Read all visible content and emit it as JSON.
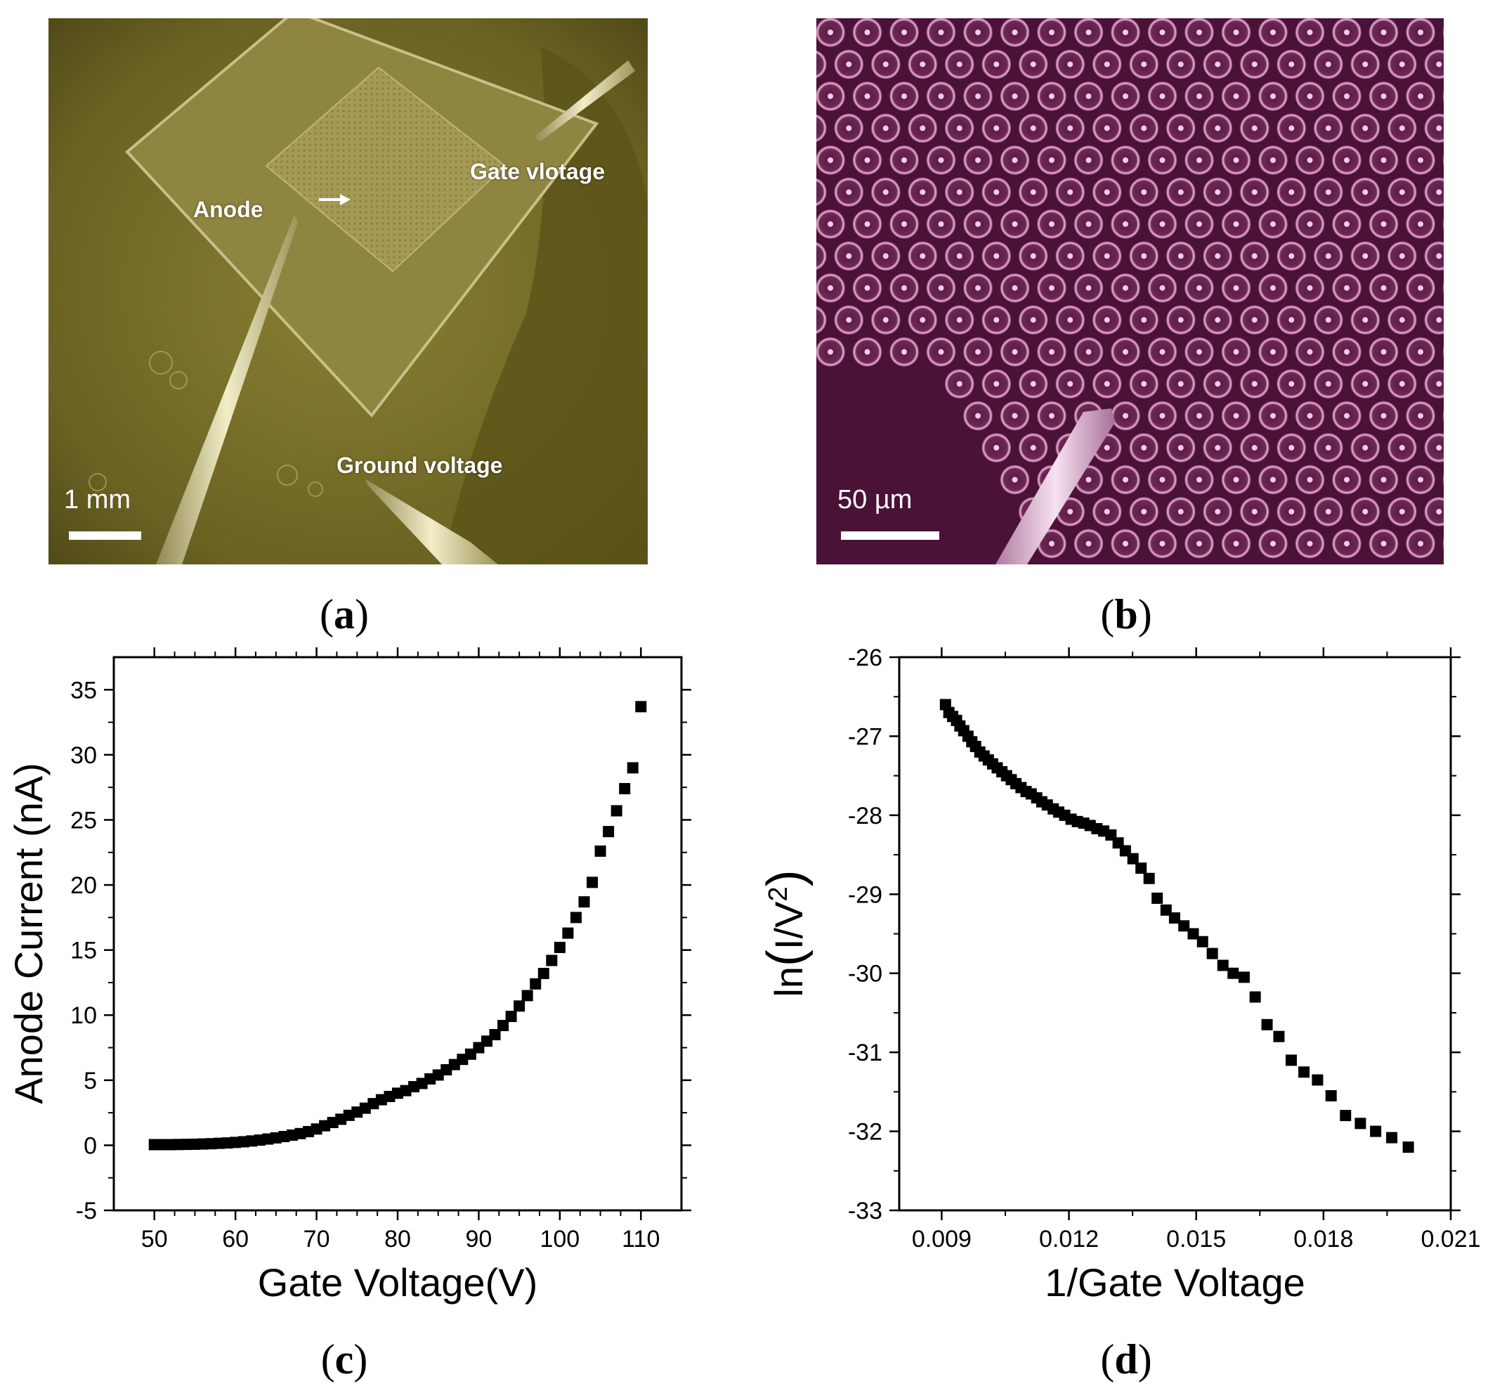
{
  "panels": {
    "a": {
      "caption": "a",
      "labels": {
        "anode": "Anode",
        "gate": "Gate vlotage",
        "ground": "Ground voltage"
      },
      "scale_bar": "1 mm",
      "tint": "#6e6624"
    },
    "b": {
      "caption": "b",
      "scale_bar": "50 µm",
      "tint": "#4a1236"
    },
    "c": {
      "caption": "c"
    },
    "d": {
      "caption": "d"
    }
  },
  "chart_data": [
    {
      "id": "c",
      "type": "scatter",
      "xlabel": "Gate Voltage(V)",
      "ylabel": "Anode Current (nA)",
      "xlim": [
        45,
        115
      ],
      "ylim": [
        -5,
        37.5
      ],
      "xticks": [
        50,
        60,
        70,
        80,
        90,
        100,
        110
      ],
      "yticks": [
        -5,
        0,
        5,
        10,
        15,
        20,
        25,
        30,
        35
      ],
      "xtick_labels": [
        "50",
        "60",
        "70",
        "80",
        "90",
        "100",
        "110"
      ],
      "ytick_labels": [
        "-5",
        "0",
        "5",
        "10",
        "15",
        "20",
        "25",
        "30",
        "35"
      ],
      "x": [
        50,
        51,
        52,
        53,
        54,
        55,
        56,
        57,
        58,
        59,
        60,
        61,
        62,
        63,
        64,
        65,
        66,
        67,
        68,
        69,
        70,
        71,
        72,
        73,
        74,
        75,
        76,
        77,
        78,
        79,
        80,
        81,
        82,
        83,
        84,
        85,
        86,
        87,
        88,
        89,
        90,
        91,
        92,
        93,
        94,
        95,
        96,
        97,
        98,
        99,
        100,
        101,
        102,
        103,
        104,
        105,
        106,
        107,
        108,
        109,
        110
      ],
      "y": [
        0.05,
        0.05,
        0.05,
        0.06,
        0.07,
        0.08,
        0.1,
        0.12,
        0.15,
        0.18,
        0.22,
        0.27,
        0.33,
        0.4,
        0.48,
        0.57,
        0.67,
        0.78,
        0.9,
        1.05,
        1.25,
        1.5,
        1.75,
        2.0,
        2.3,
        2.55,
        2.85,
        3.2,
        3.5,
        3.75,
        4.0,
        4.2,
        4.5,
        4.75,
        5.1,
        5.4,
        5.8,
        6.2,
        6.6,
        7.0,
        7.5,
        8.0,
        8.5,
        9.2,
        9.9,
        10.7,
        11.5,
        12.4,
        13.2,
        14.2,
        15.2,
        16.3,
        17.5,
        18.7,
        20.2,
        22.6,
        24.1,
        25.7,
        27.4,
        29.0,
        33.7
      ]
    },
    {
      "id": "d",
      "type": "scatter",
      "xlabel": "1/Gate Voltage",
      "ylabel": "ln(I/V2)",
      "ylabel_parts": {
        "pre": "ln",
        "open": "(",
        "base": "I/V",
        "sup": "2",
        "close": ")"
      },
      "xlim": [
        0.008,
        0.021
      ],
      "ylim": [
        -33,
        -26
      ],
      "xticks": [
        0.009,
        0.012,
        0.015,
        0.018,
        0.021
      ],
      "yticks": [
        -33,
        -32,
        -31,
        -30,
        -29,
        -28,
        -27,
        -26
      ],
      "xtick_labels": [
        "0.009",
        "0.012",
        "0.015",
        "0.018",
        "0.021"
      ],
      "ytick_labels": [
        "-33",
        "-32",
        "-31",
        "-30",
        "-29",
        "-28",
        "-27",
        "-26"
      ],
      "x": [
        0.00909,
        0.00917,
        0.00926,
        0.00935,
        0.00943,
        0.00952,
        0.00962,
        0.00971,
        0.0098,
        0.0099,
        0.01,
        0.0101,
        0.0102,
        0.01031,
        0.01042,
        0.01053,
        0.01064,
        0.01075,
        0.01087,
        0.01099,
        0.01111,
        0.01124,
        0.01136,
        0.01149,
        0.01163,
        0.01176,
        0.0119,
        0.01205,
        0.0122,
        0.01235,
        0.0125,
        0.01266,
        0.01282,
        0.01299,
        0.01316,
        0.01333,
        0.01351,
        0.0137,
        0.01389,
        0.01408,
        0.01429,
        0.01449,
        0.01471,
        0.01493,
        0.01515,
        0.01538,
        0.01563,
        0.01587,
        0.01613,
        0.01639,
        0.01667,
        0.01695,
        0.01724,
        0.01754,
        0.01786,
        0.01818,
        0.01852,
        0.01887,
        0.01923,
        0.01961,
        0.02
      ],
      "y": [
        -26.6,
        -26.7,
        -26.75,
        -26.8,
        -26.87,
        -26.93,
        -27.0,
        -27.07,
        -27.13,
        -27.2,
        -27.25,
        -27.3,
        -27.35,
        -27.4,
        -27.45,
        -27.5,
        -27.55,
        -27.6,
        -27.65,
        -27.7,
        -27.73,
        -27.78,
        -27.83,
        -27.87,
        -27.92,
        -27.96,
        -28.0,
        -28.05,
        -28.08,
        -28.1,
        -28.13,
        -28.17,
        -28.2,
        -28.25,
        -28.35,
        -28.45,
        -28.55,
        -28.67,
        -28.8,
        -29.05,
        -29.2,
        -29.3,
        -29.4,
        -29.5,
        -29.6,
        -29.75,
        -29.9,
        -30.0,
        -30.05,
        -30.3,
        -30.65,
        -30.8,
        -31.1,
        -31.25,
        -31.35,
        -31.55,
        -31.8,
        -31.9,
        -32.0,
        -32.08,
        -32.2
      ]
    }
  ]
}
